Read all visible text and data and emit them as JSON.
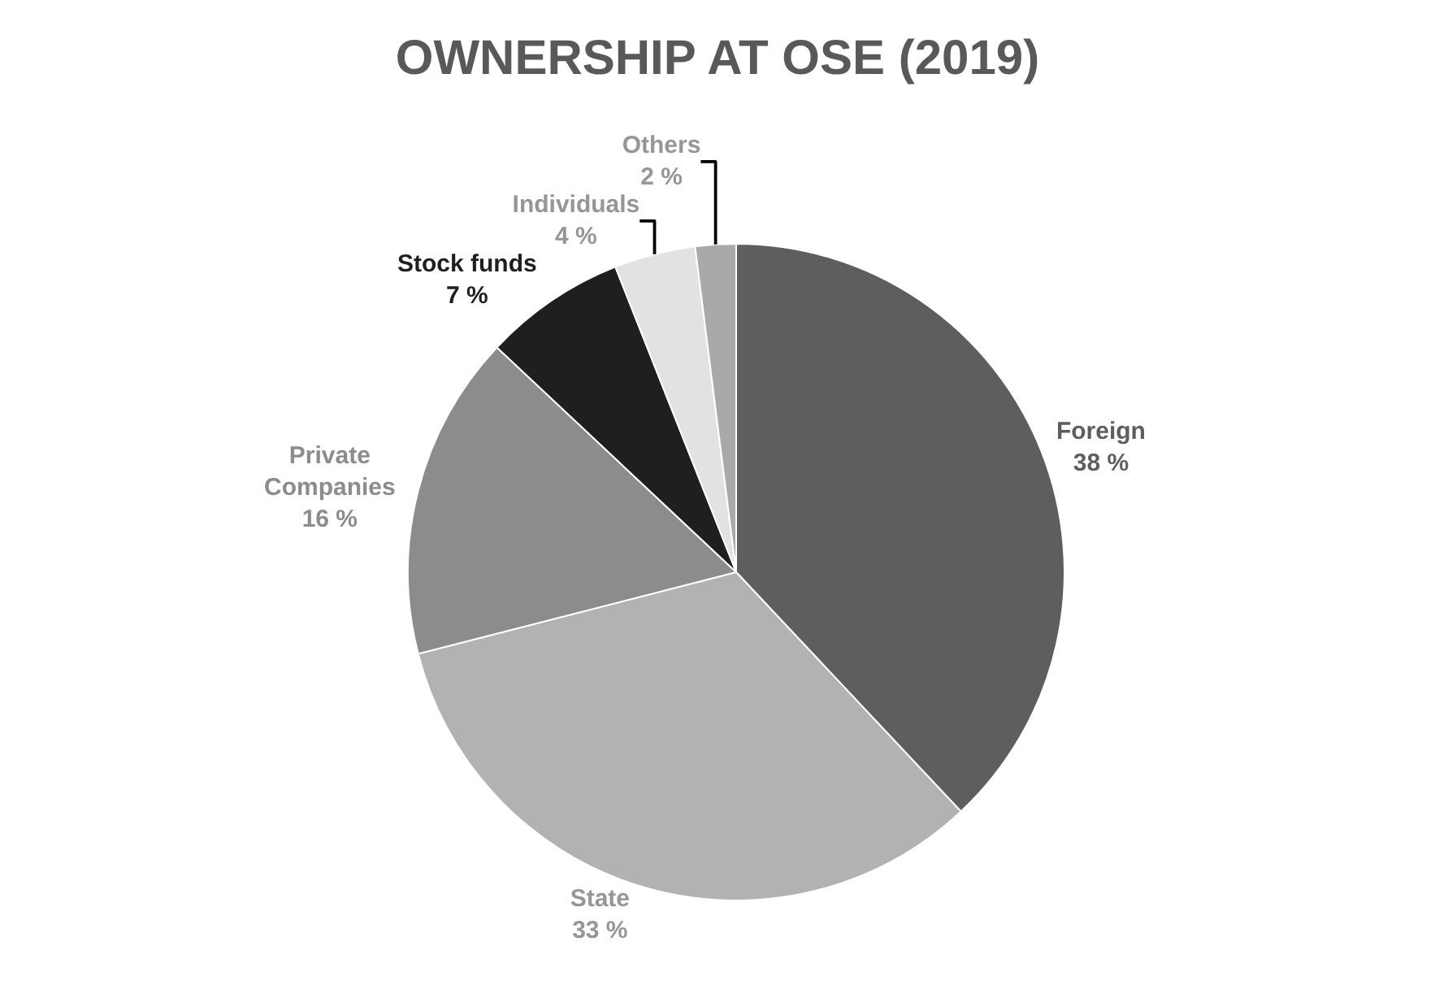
{
  "chart_data": {
    "type": "pie",
    "title": "OWNERSHIP AT OSE (2019)",
    "categories": [
      "Foreign",
      "State",
      "Private Companies",
      "Stock funds",
      "Individuals",
      "Others"
    ],
    "values": [
      38,
      33,
      16,
      7,
      4,
      2
    ],
    "value_labels": [
      "38 %",
      "33 %",
      "16 %",
      "7 %",
      "4 %",
      "2 %"
    ],
    "colors": [
      "#5e5e5e",
      "#b2b2b2",
      "#8c8c8c",
      "#1f1f1f",
      "#e2e2e2",
      "#a9a9a9"
    ],
    "legend": false
  }
}
